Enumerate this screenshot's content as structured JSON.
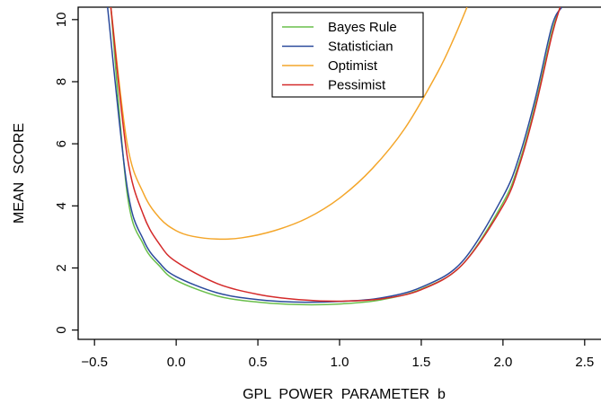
{
  "chart_data": {
    "type": "line",
    "title": "",
    "xlabel": "GPL  POWER  PARAMETER  b",
    "ylabel": "MEAN  SCORE",
    "xlim": [
      -0.6,
      2.6
    ],
    "ylim": [
      -0.3,
      10.4
    ],
    "x_ticks": [
      -0.5,
      0.0,
      0.5,
      1.0,
      1.5,
      2.0,
      2.5
    ],
    "x_tick_labels": [
      "−0.5",
      "0.0",
      "0.5",
      "1.0",
      "1.5",
      "2.0",
      "2.5"
    ],
    "y_ticks": [
      0,
      2,
      4,
      6,
      8,
      10
    ],
    "y_tick_labels": [
      "0",
      "2",
      "4",
      "6",
      "8",
      "10"
    ],
    "grid": false,
    "legend_position": "top-center",
    "series": [
      {
        "name": "Bayes Rule",
        "color": "#6abf4b",
        "x": [
          -0.4,
          -0.3,
          -0.2,
          -0.1,
          0.0,
          0.25,
          0.5,
          0.75,
          1.0,
          1.25,
          1.5,
          1.75,
          2.0,
          2.1,
          2.2,
          2.3,
          2.35
        ],
        "y": [
          10.4,
          4.4,
          2.75,
          2.05,
          1.6,
          1.1,
          0.9,
          0.82,
          0.84,
          0.97,
          1.32,
          2.1,
          4.1,
          5.4,
          7.3,
          9.6,
          10.4
        ]
      },
      {
        "name": "Statistician",
        "color": "#2b4a9c",
        "x": [
          -0.42,
          -0.3,
          -0.2,
          -0.1,
          0.0,
          0.25,
          0.5,
          0.75,
          1.0,
          1.25,
          1.5,
          1.75,
          2.0,
          2.1,
          2.2,
          2.3,
          2.36
        ],
        "y": [
          10.4,
          4.6,
          2.9,
          2.15,
          1.72,
          1.2,
          0.98,
          0.9,
          0.92,
          1.03,
          1.38,
          2.2,
          4.3,
          5.6,
          7.5,
          9.8,
          10.4
        ]
      },
      {
        "name": "Optimist",
        "color": "#f4a62a",
        "x": [
          -0.4,
          -0.3,
          -0.2,
          -0.1,
          0.0,
          0.1,
          0.25,
          0.4,
          0.6,
          0.8,
          1.0,
          1.2,
          1.4,
          1.6,
          1.7,
          1.78
        ],
        "y": [
          10.4,
          6.0,
          4.4,
          3.6,
          3.2,
          3.02,
          2.93,
          2.97,
          3.2,
          3.6,
          4.25,
          5.2,
          6.5,
          8.3,
          9.4,
          10.4
        ]
      },
      {
        "name": "Pessimist",
        "color": "#d42a2a",
        "x": [
          -0.4,
          -0.3,
          -0.2,
          -0.1,
          0.0,
          0.25,
          0.5,
          0.75,
          1.0,
          1.25,
          1.5,
          1.75,
          2.0,
          2.1,
          2.2,
          2.3,
          2.35
        ],
        "y": [
          10.4,
          5.6,
          3.7,
          2.75,
          2.2,
          1.5,
          1.15,
          0.98,
          0.93,
          1.0,
          1.3,
          2.1,
          4.0,
          5.3,
          7.2,
          9.5,
          10.4
        ]
      }
    ]
  }
}
